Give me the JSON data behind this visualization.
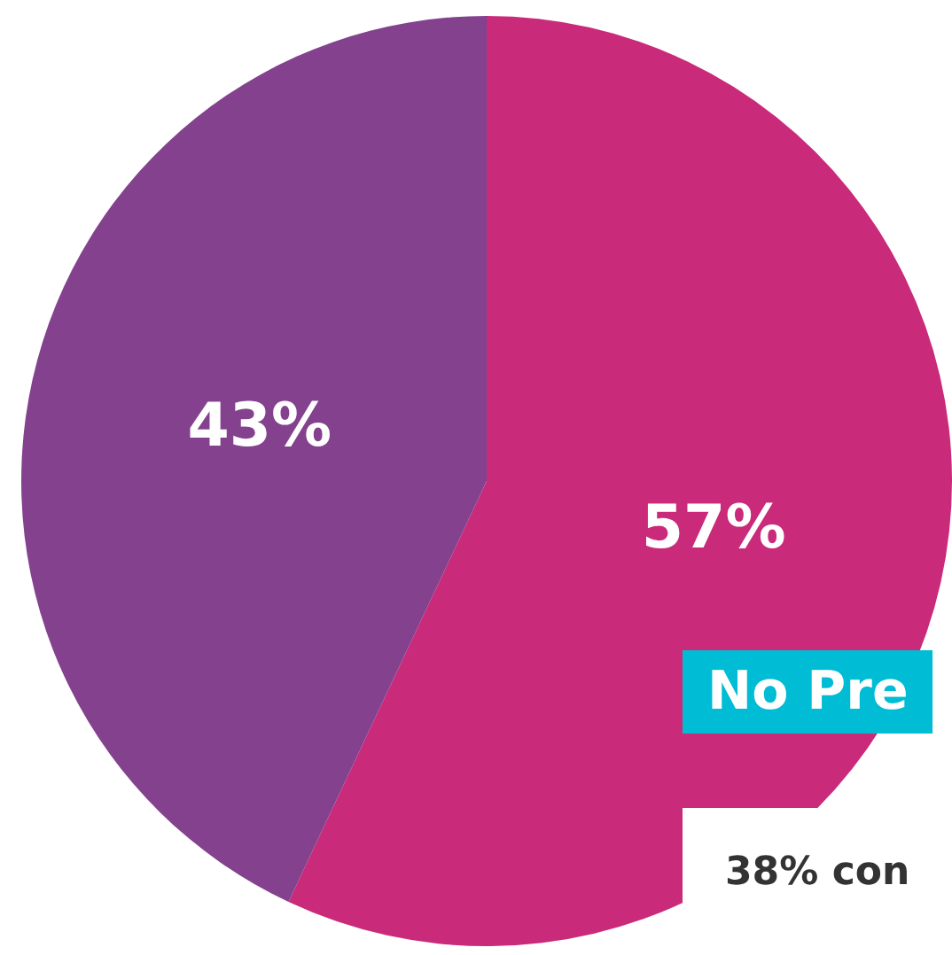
{
  "chart_data": {
    "type": "pie",
    "categories": [
      null,
      null
    ],
    "values": [
      57,
      43
    ],
    "colors": [
      "#c92a7a",
      "#83418e"
    ],
    "value_labels": [
      "57%",
      "43%"
    ],
    "annotations": [
      "No Pre",
      "38% con"
    ]
  }
}
